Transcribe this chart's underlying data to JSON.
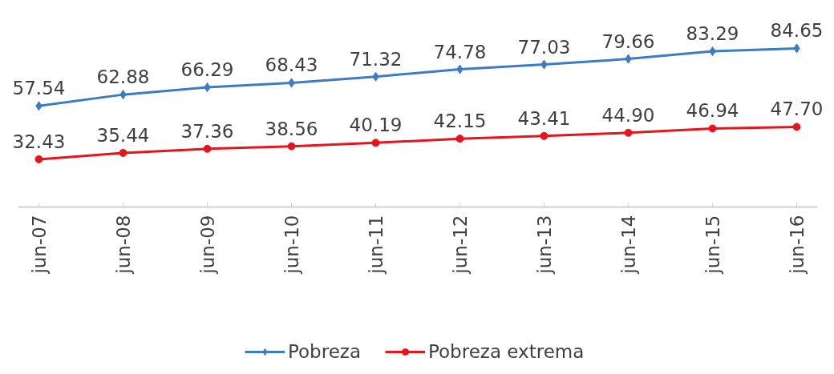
{
  "chart_data": {
    "type": "line",
    "categories": [
      "jun-07",
      "jun-08",
      "jun-09",
      "jun-10",
      "jun-11",
      "jun-12",
      "jun-13",
      "jun-14",
      "jun-15",
      "jun-16"
    ],
    "series": [
      {
        "name": "Pobreza",
        "color": "#3d7cc4",
        "marker": "diamond",
        "values": [
          57.54,
          62.88,
          66.29,
          68.43,
          71.32,
          74.78,
          77.03,
          79.66,
          83.29,
          84.65
        ],
        "value_labels": [
          "57.54",
          "62.88",
          "66.29",
          "68.43",
          "71.32",
          "74.78",
          "77.03",
          "79.66",
          "83.29",
          "84.65"
        ]
      },
      {
        "name": "Pobreza extrema",
        "color": "#e5141d",
        "marker": "circle",
        "values": [
          32.43,
          35.44,
          37.36,
          38.56,
          40.19,
          42.15,
          43.41,
          44.9,
          46.94,
          47.7
        ],
        "value_labels": [
          "32.43",
          "35.44",
          "37.36",
          "38.56",
          "40.19",
          "42.15",
          "43.41",
          "44.90",
          "46.94",
          "47.70"
        ]
      }
    ],
    "grid": false,
    "legend": "bottom",
    "tick_labels": "x",
    "line_style": "solid"
  }
}
